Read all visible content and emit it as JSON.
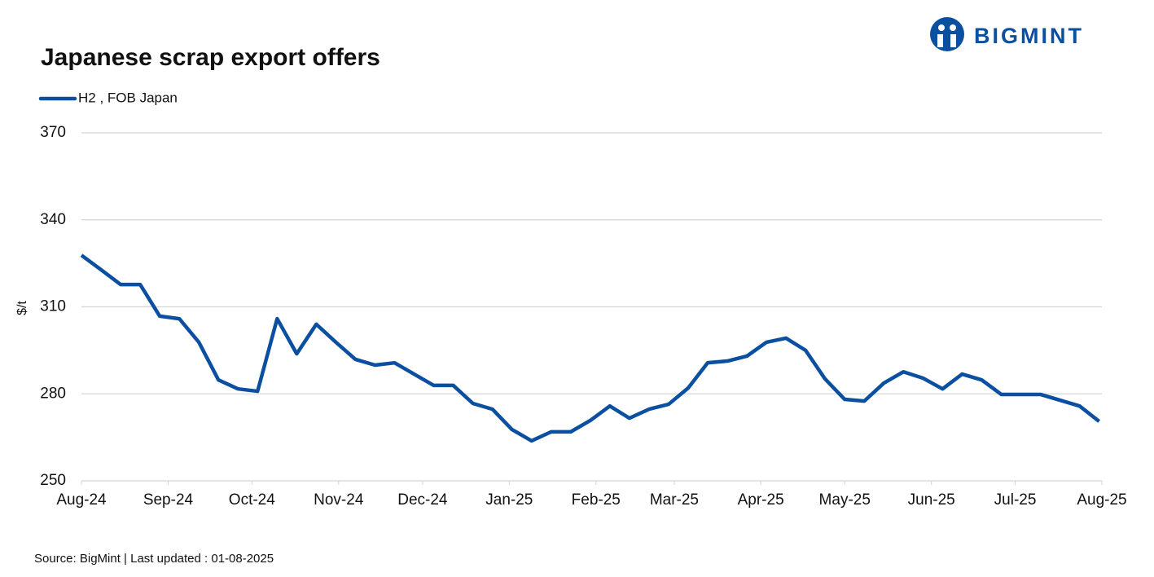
{
  "logo": "BIGMINT",
  "chart_data": {
    "type": "line",
    "title": "Japanese scrap export offers",
    "y_label": "$/t",
    "source": "Source: BigMint  | Last updated : 01-08-2025",
    "x": [
      0,
      1,
      2,
      3,
      4,
      5,
      6,
      7,
      8,
      9,
      10,
      11,
      12,
      13,
      14,
      15,
      16,
      17,
      18,
      19,
      20,
      21,
      22,
      23,
      24,
      25,
      26,
      27,
      28,
      29,
      30,
      31,
      32,
      33,
      34,
      35,
      36,
      37,
      38,
      39,
      40,
      41,
      42,
      43,
      44,
      45,
      46,
      47,
      48,
      49,
      50,
      51,
      52
    ],
    "series": [
      {
        "name": "H2 , FOB Japan",
        "color": "#0a4fa0",
        "values": [
          327.8,
          322.8,
          317.7,
          317.7,
          306.8,
          305.9,
          297.8,
          284.8,
          281.7,
          280.9,
          305.9,
          293.8,
          304,
          297.8,
          291.9,
          289.9,
          290.7,
          286.8,
          282.9,
          282.9,
          276.7,
          274.7,
          267.7,
          263.8,
          266.9,
          266.9,
          270.8,
          275.8,
          271.6,
          274.7,
          276.4,
          282,
          290.7,
          291.3,
          293,
          297.8,
          299.2,
          295,
          285.1,
          278.1,
          277.5,
          283.7,
          287.6,
          285.4,
          281.7,
          286.8,
          284.8,
          279.8,
          279.8,
          279.8,
          277.8,
          275.8,
          270.5
        ]
      }
    ],
    "xlim": [
      0,
      52.14
    ],
    "xticks": [
      {
        "value": 0,
        "label": "Aug-24"
      },
      {
        "value": 4.43,
        "label": "Sep-24"
      },
      {
        "value": 8.71,
        "label": "Oct-24"
      },
      {
        "value": 13.14,
        "label": "Nov-24"
      },
      {
        "value": 17.43,
        "label": "Dec-24"
      },
      {
        "value": 21.86,
        "label": "Jan-25"
      },
      {
        "value": 26.29,
        "label": "Feb-25"
      },
      {
        "value": 30.29,
        "label": "Mar-25"
      },
      {
        "value": 34.71,
        "label": "Apr-25"
      },
      {
        "value": 39,
        "label": "May-25"
      },
      {
        "value": 43.43,
        "label": "Jun-25"
      },
      {
        "value": 47.71,
        "label": "Jul-25"
      },
      {
        "value": 52.14,
        "label": "Aug-25"
      }
    ],
    "ylim": [
      250,
      370
    ],
    "yticks": [
      250,
      280,
      310,
      340,
      370
    ],
    "grid": true
  }
}
